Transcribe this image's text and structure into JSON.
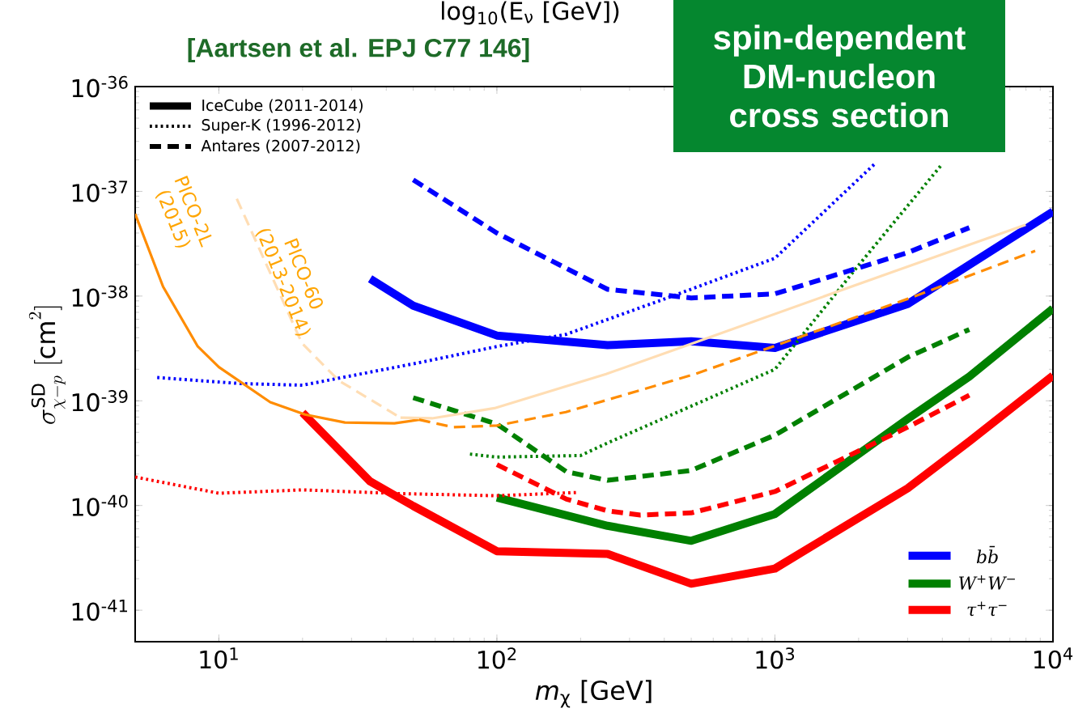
{
  "chart_data": {
    "type": "line",
    "title": "spin-dependent DM-nucleon cross section",
    "subtitle": "[Aartsen et al. EPJ C77 146]",
    "xlabel": "*m*$_{χ}$ [GeV]",
    "ylabel": "\\sigma^{\\mathrm{SD}}_{\\chi-p}\\ [\\mathrm{cm}^2]",
    "log": "xy",
    "xlim": [
      5,
      10000
    ],
    "ylim": [
      5e-42,
      1e-36
    ],
    "xticks": [
      {
        "value": 10,
        "label": "10$^{1}$"
      },
      {
        "value": 100,
        "label": "10$^{2}$"
      },
      {
        "value": 1000,
        "label": "10$^{3}$"
      },
      {
        "value": 10000,
        "label": "10$^{4}$"
      }
    ],
    "yticks": [
      {
        "value": 1e-41,
        "label": "10$^{-41}$"
      },
      {
        "value": 1e-40,
        "label": "10$^{-40}$"
      },
      {
        "value": 1e-39,
        "label": "10$^{-39}$"
      },
      {
        "value": 1e-38,
        "label": "10$^{-38}$"
      },
      {
        "value": 1e-37,
        "label": "10$^{-37}$"
      },
      {
        "value": 1e-36,
        "label": "10$^{-36}$"
      }
    ],
    "legend": "bottom right",
    "annotations": [
      "log$_{10}$(E$_{ν}$ [GeV])",
      "IceCube (2011-2014)",
      "Super-K (1996-2012)",
      "Antares (2007-2012)",
      "PICO-2L (2015)",
      "PICO-60 (2013-2014)"
    ],
    "series": [
      {
        "name": "bb̄",
        "color": "#0000ff",
        "line_style": "solid",
        "x": [
          35,
          50,
          100,
          250,
          500,
          1000,
          3000,
          10000
        ],
        "values": [
          1.46e-38,
          8.1e-39,
          4.2e-39,
          3.4e-39,
          3.7e-39,
          3.2e-39,
          8.4e-39,
          6.4e-38
        ]
      },
      {
        "name": "W$^{+}$W$^{−}$",
        "color": "#008000",
        "line_style": "solid",
        "x": [
          100,
          250,
          500,
          1000,
          3000,
          5000,
          10000
        ],
        "values": [
          1.19e-40,
          6.4e-41,
          4.6e-41,
          8.3e-41,
          6.7e-40,
          1.7e-39,
          7.6e-39
        ]
      },
      {
        "name": "τ$^{+}$τ$^{−}$",
        "color": "#ff0000",
        "line_style": "solid",
        "x": [
          20,
          35,
          50,
          100,
          250,
          500,
          1000,
          3000,
          5000,
          10000
        ],
        "values": [
          7.7e-40,
          1.7e-40,
          9.9e-41,
          3.66e-41,
          3.45e-41,
          1.79e-41,
          2.5e-41,
          1.46e-40,
          4.1e-40,
          1.74e-39
        ]
      },
      {
        "color": "#0000ff",
        "line_style": "dotted",
        "x": [
          6,
          12,
          20,
          52,
          100,
          177,
          428,
          1000,
          2300
        ],
        "values": [
          1.67e-39,
          1.46e-39,
          1.41e-39,
          2.3e-39,
          3.3e-39,
          4.3e-39,
          1e-38,
          2.3e-38,
          1.86e-37
        ]
      },
      {
        "color": "#008000",
        "line_style": "dotted",
        "x": [
          80,
          100,
          200,
          247,
          1000,
          1977,
          3980
        ],
        "values": [
          3.1e-40,
          2.9e-40,
          3e-40,
          3.9e-40,
          2e-39,
          1.9e-38,
          1.8e-37
        ]
      },
      {
        "color": "#ff0000",
        "line_style": "dotted",
        "x": [
          5,
          10,
          20,
          44.5,
          100,
          193
        ],
        "values": [
          1.87e-40,
          1.31e-40,
          1.41e-40,
          1.3e-40,
          1.24e-40,
          1.33e-40
        ]
      },
      {
        "color": "#0000ff",
        "line_style": "dashed",
        "x": [
          50,
          100,
          250,
          500,
          1000,
          3000,
          5000
        ],
        "values": [
          1.29e-37,
          4e-38,
          1.16e-38,
          9.6e-39,
          1.05e-38,
          2.6e-38,
          4.5e-38
        ]
      },
      {
        "color": "#008000",
        "line_style": "dashed",
        "x": [
          50,
          100,
          178,
          250,
          500,
          1000,
          3000,
          5000
        ],
        "values": [
          1.07e-39,
          6e-40,
          2.1e-40,
          1.74e-40,
          2.16e-40,
          4.7e-40,
          2.6e-39,
          4.8e-39
        ]
      },
      {
        "color": "#ff0000",
        "line_style": "dashed",
        "x": [
          100,
          178,
          250,
          328,
          500,
          1000,
          3000,
          5000
        ],
        "values": [
          2.46e-40,
          1.15e-40,
          8.9e-41,
          8.1e-41,
          8.5e-41,
          1.36e-40,
          5.6e-40,
          1.13e-39
        ]
      },
      {
        "color": "#ff8c00",
        "line_style": "solid",
        "x": [
          5,
          6.3,
          8.4,
          10,
          15.3,
          20.4,
          28.4,
          42.8,
          52.5
        ],
        "values": [
          6.1e-38,
          1.23e-38,
          3.3e-39,
          2.1e-39,
          9.7e-40,
          7.4e-40,
          6.2e-40,
          6.1e-40,
          6.6e-40
        ]
      },
      {
        "color": "#ffddb3",
        "line_style": "dashed",
        "x": [
          11.6,
          19.9,
          27,
          45
        ],
        "values": [
          8.5e-38,
          3.55e-39,
          1.56e-39,
          6.9e-40
        ]
      },
      {
        "color": "#ffddb3",
        "line_style": "solid",
        "x": [
          45,
          58.5,
          98,
          247,
          516,
          2580,
          7980
        ],
        "values": [
          6.9e-40,
          6.8e-40,
          8.5e-40,
          1.8e-39,
          3.6e-39,
          1.66e-38,
          4.8e-38
        ]
      },
      {
        "color": "#ff8c00",
        "line_style": "dashed",
        "x": [
          52.5,
          69.7,
          100,
          177,
          516,
          3000,
          8630
        ],
        "values": [
          6.6e-40,
          5.6e-40,
          5.8e-40,
          7.8e-40,
          1.8e-39,
          9.4e-39,
          2.7e-38
        ]
      }
    ]
  }
}
